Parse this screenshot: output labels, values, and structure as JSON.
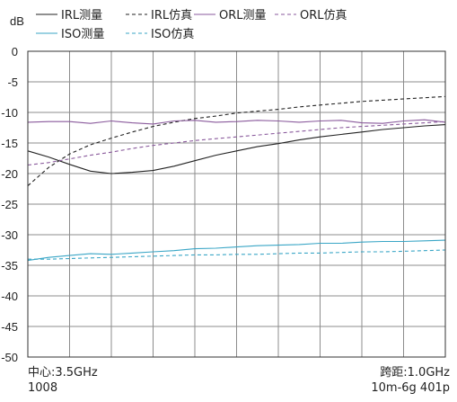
{
  "chart_data": {
    "type": "line",
    "ylabel": "dB",
    "ylim": [
      -50,
      0
    ],
    "yticks": [
      0,
      -5,
      -10,
      -15,
      -20,
      -25,
      -30,
      -35,
      -40,
      -45,
      -50
    ],
    "ytick_labels": [
      "0",
      "-5",
      "-10",
      "-15",
      "-20",
      "-25",
      "-30",
      "-35",
      "-40",
      "-45",
      "-50"
    ],
    "xlim": [
      3.0,
      4.0
    ],
    "x_unit": "GHz",
    "x_divisions": 10,
    "grid": true,
    "legend_position": "top",
    "footer": {
      "center": "中心:3.5GHz",
      "points": "1008",
      "span": "跨距:1.0GHz",
      "sweep": "10m-6g 401p"
    },
    "series": [
      {
        "name": "IRL测量",
        "color": "#222222",
        "dash": false,
        "x": [
          3.0,
          3.05,
          3.1,
          3.15,
          3.2,
          3.25,
          3.3,
          3.35,
          3.4,
          3.45,
          3.5,
          3.55,
          3.6,
          3.65,
          3.7,
          3.75,
          3.8,
          3.85,
          3.9,
          3.95,
          4.0
        ],
        "y": [
          -16.3,
          -17.3,
          -18.5,
          -19.6,
          -20.0,
          -19.8,
          -19.5,
          -18.8,
          -17.9,
          -17.0,
          -16.3,
          -15.6,
          -15.1,
          -14.5,
          -14.0,
          -13.6,
          -13.2,
          -12.8,
          -12.5,
          -12.2,
          -12.0
        ]
      },
      {
        "name": "IRL仿真",
        "color": "#222222",
        "dash": true,
        "x": [
          3.0,
          3.05,
          3.1,
          3.15,
          3.2,
          3.25,
          3.3,
          3.35,
          3.4,
          3.45,
          3.5,
          3.55,
          3.6,
          3.65,
          3.7,
          3.75,
          3.8,
          3.85,
          3.9,
          3.95,
          4.0
        ],
        "y": [
          -22.0,
          -19.0,
          -16.8,
          -15.3,
          -14.2,
          -13.2,
          -12.3,
          -11.6,
          -11.0,
          -10.6,
          -10.1,
          -9.8,
          -9.5,
          -9.1,
          -8.8,
          -8.5,
          -8.2,
          -8.0,
          -7.8,
          -7.6,
          -7.4
        ]
      },
      {
        "name": "ORL测量",
        "color": "#8a5a9c",
        "dash": false,
        "x": [
          3.0,
          3.05,
          3.1,
          3.15,
          3.2,
          3.25,
          3.3,
          3.35,
          3.4,
          3.45,
          3.5,
          3.55,
          3.6,
          3.65,
          3.7,
          3.75,
          3.8,
          3.85,
          3.9,
          3.95,
          4.0
        ],
        "y": [
          -11.6,
          -11.5,
          -11.5,
          -11.8,
          -11.4,
          -11.7,
          -11.9,
          -11.4,
          -11.3,
          -11.6,
          -11.5,
          -11.3,
          -11.4,
          -11.6,
          -11.4,
          -11.3,
          -11.7,
          -11.8,
          -11.4,
          -11.2,
          -11.6
        ]
      },
      {
        "name": "ORL仿真",
        "color": "#8a5a9c",
        "dash": true,
        "x": [
          3.0,
          3.05,
          3.1,
          3.15,
          3.2,
          3.25,
          3.3,
          3.35,
          3.4,
          3.45,
          3.5,
          3.55,
          3.6,
          3.65,
          3.7,
          3.75,
          3.8,
          3.85,
          3.9,
          3.95,
          4.0
        ],
        "y": [
          -18.6,
          -18.2,
          -17.6,
          -17.0,
          -16.5,
          -15.9,
          -15.4,
          -15.0,
          -14.6,
          -14.3,
          -14.0,
          -13.7,
          -13.4,
          -13.1,
          -12.8,
          -12.5,
          -12.3,
          -12.1,
          -11.9,
          -11.7,
          -11.5
        ]
      },
      {
        "name": "ISO测量",
        "color": "#3aa6c6",
        "dash": false,
        "x": [
          3.0,
          3.05,
          3.1,
          3.15,
          3.2,
          3.25,
          3.3,
          3.35,
          3.4,
          3.45,
          3.5,
          3.55,
          3.6,
          3.65,
          3.7,
          3.75,
          3.8,
          3.85,
          3.9,
          3.95,
          4.0
        ],
        "y": [
          -34.2,
          -33.7,
          -33.4,
          -33.1,
          -33.2,
          -33.0,
          -32.8,
          -32.6,
          -32.3,
          -32.2,
          -32.0,
          -31.8,
          -31.7,
          -31.6,
          -31.4,
          -31.4,
          -31.2,
          -31.1,
          -31.1,
          -31.0,
          -30.9
        ]
      },
      {
        "name": "ISO仿真",
        "color": "#3aa6c6",
        "dash": true,
        "x": [
          3.0,
          3.05,
          3.1,
          3.15,
          3.2,
          3.25,
          3.3,
          3.35,
          3.4,
          3.45,
          3.5,
          3.55,
          3.6,
          3.65,
          3.7,
          3.75,
          3.8,
          3.85,
          3.9,
          3.95,
          4.0
        ],
        "y": [
          -34.0,
          -34.0,
          -33.9,
          -33.8,
          -33.7,
          -33.6,
          -33.5,
          -33.4,
          -33.3,
          -33.3,
          -33.2,
          -33.2,
          -33.1,
          -33.0,
          -33.0,
          -32.9,
          -32.8,
          -32.8,
          -32.7,
          -32.6,
          -32.5
        ]
      }
    ]
  }
}
